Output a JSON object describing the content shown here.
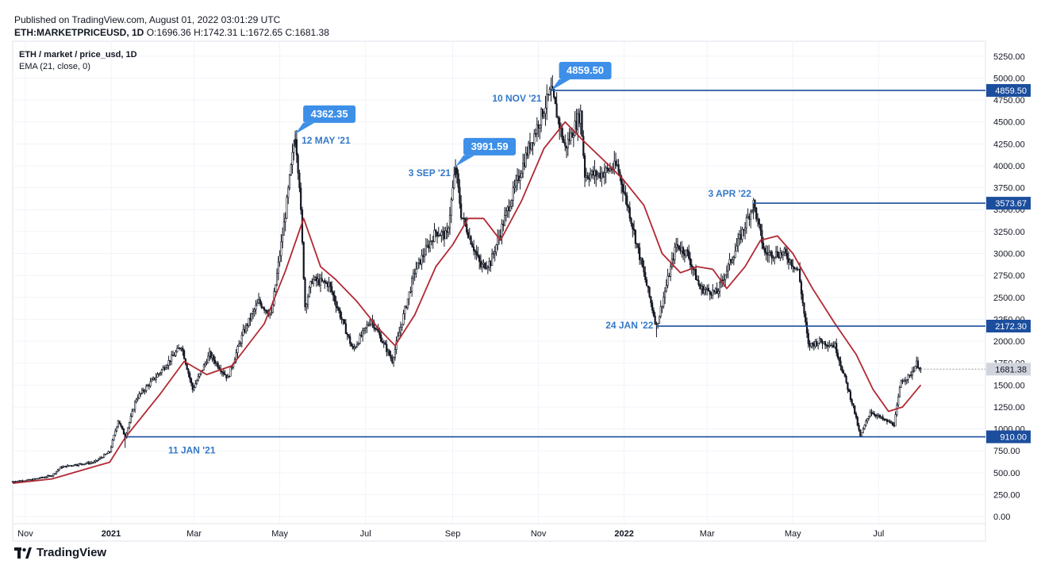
{
  "header": {
    "published": "Published on TradingView.com, August 01, 2022 03:01:29 UTC",
    "symbol": "ETH:MARKETPRICEUSD, 1D",
    "ohlc": "O:1696.36 H:1742.31 L:1672.65 C:1681.38"
  },
  "legend": {
    "series": "ETH / market / price_usd, 1D",
    "indicator": "EMA (21, close, 0)"
  },
  "brand": {
    "name": "TradingView"
  },
  "colors": {
    "candle": "#131722",
    "ema": "#b22833",
    "hline": "#1c4e9e",
    "callout": "#3d8fe8",
    "annotation": "#3479c8",
    "last_price": "#d1d4dc"
  },
  "chart_data": {
    "type": "line",
    "title": "ETH / market / price_usd, 1D",
    "ylim": [
      -80,
      5420
    ],
    "y_ticks": [
      "5250.00",
      "5000.00",
      "4750.00",
      "4500.00",
      "4250.00",
      "4000.00",
      "3750.00",
      "3500.00",
      "3250.00",
      "3000.00",
      "2750.00",
      "2500.00",
      "2250.00",
      "2000.00",
      "1750.00",
      "1500.00",
      "1250.00",
      "1000.00",
      "750.00",
      "500.00",
      "250.00",
      "0.00"
    ],
    "x_ticks": [
      {
        "label": "Nov",
        "date": "2020-11-01"
      },
      {
        "label": "2021",
        "date": "2021-01-01",
        "bold": true
      },
      {
        "label": "Mar",
        "date": "2021-03-01"
      },
      {
        "label": "May",
        "date": "2021-05-01"
      },
      {
        "label": "Jul",
        "date": "2021-07-01"
      },
      {
        "label": "Sep",
        "date": "2021-09-01"
      },
      {
        "label": "Nov",
        "date": "2021-11-01"
      },
      {
        "label": "2022",
        "date": "2022-01-01",
        "bold": true
      },
      {
        "label": "Mar",
        "date": "2022-03-01"
      },
      {
        "label": "May",
        "date": "2022-05-01"
      },
      {
        "label": "Jul",
        "date": "2022-07-01"
      }
    ],
    "x_range": [
      "2020-10-23",
      "2022-09-15"
    ],
    "series": [
      {
        "kind": "price",
        "points": [
          [
            "2020-10-23",
            400
          ],
          [
            "2020-11-05",
            420
          ],
          [
            "2020-11-20",
            470
          ],
          [
            "2020-11-26",
            560
          ],
          [
            "2020-12-05",
            590
          ],
          [
            "2020-12-20",
            620
          ],
          [
            "2020-12-31",
            740
          ],
          [
            "2021-01-06",
            1100
          ],
          [
            "2021-01-11",
            910
          ],
          [
            "2021-01-19",
            1350
          ],
          [
            "2021-02-05",
            1650
          ],
          [
            "2021-02-20",
            1950
          ],
          [
            "2021-02-28",
            1450
          ],
          [
            "2021-03-12",
            1850
          ],
          [
            "2021-03-25",
            1580
          ],
          [
            "2021-04-05",
            2100
          ],
          [
            "2021-04-16",
            2450
          ],
          [
            "2021-04-25",
            2300
          ],
          [
            "2021-05-05",
            3450
          ],
          [
            "2021-05-12",
            4362.35
          ],
          [
            "2021-05-15",
            3800
          ],
          [
            "2021-05-19",
            2400
          ],
          [
            "2021-05-24",
            2700
          ],
          [
            "2021-06-05",
            2650
          ],
          [
            "2021-06-22",
            1900
          ],
          [
            "2021-07-05",
            2250
          ],
          [
            "2021-07-20",
            1780
          ],
          [
            "2021-08-05",
            2800
          ],
          [
            "2021-08-20",
            3250
          ],
          [
            "2021-08-28",
            3200
          ],
          [
            "2021-09-03",
            3991.59
          ],
          [
            "2021-09-07",
            3450
          ],
          [
            "2021-09-21",
            2850
          ],
          [
            "2021-09-28",
            2900
          ],
          [
            "2021-10-10",
            3500
          ],
          [
            "2021-10-25",
            4200
          ],
          [
            "2021-11-10",
            4859.5
          ],
          [
            "2021-11-20",
            4200
          ],
          [
            "2021-12-01",
            4600
          ],
          [
            "2021-12-04",
            3900
          ],
          [
            "2021-12-14",
            3900
          ],
          [
            "2021-12-27",
            4000
          ],
          [
            "2022-01-05",
            3450
          ],
          [
            "2022-01-10",
            3100
          ],
          [
            "2022-01-24",
            2172.3
          ],
          [
            "2022-02-07",
            3100
          ],
          [
            "2022-02-15",
            3000
          ],
          [
            "2022-02-24",
            2600
          ],
          [
            "2022-03-08",
            2550
          ],
          [
            "2022-03-20",
            3000
          ],
          [
            "2022-04-03",
            3573.67
          ],
          [
            "2022-04-11",
            3000
          ],
          [
            "2022-04-25",
            3000
          ],
          [
            "2022-05-05",
            2800
          ],
          [
            "2022-05-12",
            1950
          ],
          [
            "2022-05-20",
            2000
          ],
          [
            "2022-05-31",
            1950
          ],
          [
            "2022-06-13",
            1250
          ],
          [
            "2022-06-18",
            910.0
          ],
          [
            "2022-06-25",
            1200
          ],
          [
            "2022-07-05",
            1100
          ],
          [
            "2022-07-12",
            1050
          ],
          [
            "2022-07-17",
            1550
          ],
          [
            "2022-07-23",
            1600
          ],
          [
            "2022-07-28",
            1750
          ],
          [
            "2022-07-31",
            1681.38
          ]
        ]
      },
      {
        "kind": "ema",
        "name": "EMA (21, close, 0)",
        "points": [
          [
            "2020-10-23",
            380
          ],
          [
            "2020-11-20",
            430
          ],
          [
            "2020-12-20",
            570
          ],
          [
            "2020-12-31",
            620
          ],
          [
            "2021-01-11",
            900
          ],
          [
            "2021-02-05",
            1400
          ],
          [
            "2021-02-22",
            1770
          ],
          [
            "2021-03-10",
            1620
          ],
          [
            "2021-03-28",
            1720
          ],
          [
            "2021-04-20",
            2200
          ],
          [
            "2021-05-05",
            2800
          ],
          [
            "2021-05-18",
            3400
          ],
          [
            "2021-05-30",
            2850
          ],
          [
            "2021-06-10",
            2700
          ],
          [
            "2021-06-25",
            2450
          ],
          [
            "2021-07-10",
            2150
          ],
          [
            "2021-07-22",
            1950
          ],
          [
            "2021-08-05",
            2300
          ],
          [
            "2021-08-20",
            2850
          ],
          [
            "2021-09-01",
            3100
          ],
          [
            "2021-09-12",
            3400
          ],
          [
            "2021-09-23",
            3400
          ],
          [
            "2021-10-05",
            3150
          ],
          [
            "2021-10-20",
            3600
          ],
          [
            "2021-11-05",
            4200
          ],
          [
            "2021-11-20",
            4500
          ],
          [
            "2021-12-02",
            4300
          ],
          [
            "2021-12-15",
            4100
          ],
          [
            "2021-12-31",
            3850
          ],
          [
            "2022-01-15",
            3550
          ],
          [
            "2022-01-28",
            3000
          ],
          [
            "2022-02-10",
            2780
          ],
          [
            "2022-02-22",
            2850
          ],
          [
            "2022-03-05",
            2820
          ],
          [
            "2022-03-15",
            2600
          ],
          [
            "2022-03-28",
            2850
          ],
          [
            "2022-04-08",
            3150
          ],
          [
            "2022-04-20",
            3200
          ],
          [
            "2022-05-01",
            3000
          ],
          [
            "2022-05-15",
            2600
          ],
          [
            "2022-05-31",
            2200
          ],
          [
            "2022-06-15",
            1850
          ],
          [
            "2022-06-27",
            1450
          ],
          [
            "2022-07-08",
            1200
          ],
          [
            "2022-07-18",
            1250
          ],
          [
            "2022-07-31",
            1500
          ]
        ]
      }
    ],
    "horizontal_levels": [
      {
        "value": 4859.5,
        "label": "4859.50",
        "from": "2021-11-10"
      },
      {
        "value": 3573.67,
        "label": "3573.67",
        "from": "2022-04-03"
      },
      {
        "value": 2172.3,
        "label": "2172.30",
        "from": "2022-01-24"
      },
      {
        "value": 910.0,
        "label": "910.00",
        "from": "2021-01-11"
      }
    ],
    "last_price": {
      "value": 1681.38,
      "label": "1681.38"
    },
    "annotations": [
      {
        "date": "2021-05-12",
        "value": 4362.35,
        "label": "4362.35",
        "date_label": "12 MAY '21"
      },
      {
        "date": "2021-09-03",
        "value": 3991.59,
        "label": "3991.59",
        "date_label": "3 SEP '21"
      },
      {
        "date": "2021-11-10",
        "value": 4859.5,
        "label": "4859.50",
        "date_label": "10 NOV '21"
      },
      {
        "date": "2022-04-03",
        "value": 3573.67,
        "date_label": "3 APR '22"
      },
      {
        "date": "2022-01-24",
        "value": 2172.3,
        "date_label": "24 JAN '22"
      },
      {
        "date": "2021-01-11",
        "value": 910.0,
        "date_label": "11 JAN '21"
      }
    ]
  }
}
